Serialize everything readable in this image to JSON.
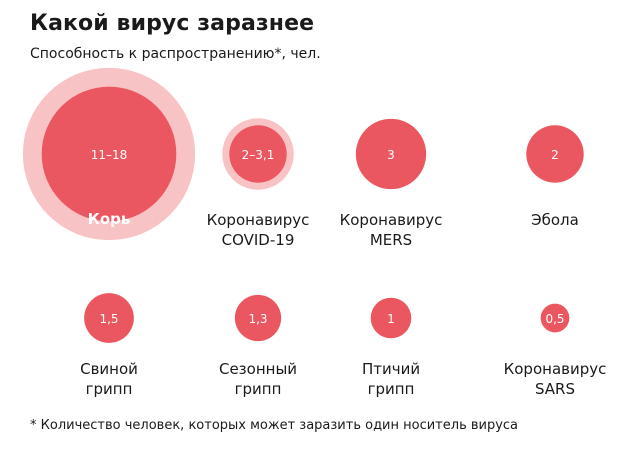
{
  "title": "Какой вирус заразнее",
  "subtitle": "Способность к распространению*, чел.",
  "footnote": "* Количество человек, которых может заразить один носитель вируса",
  "colors": {
    "bubble": "#eb5760",
    "halo": "#f7c3c5",
    "bubble_text": "#ffffff",
    "label_text": "#1a1a1a"
  },
  "chart_data": {
    "type": "bubble",
    "title": "Какой вирус заразнее",
    "subtitle": "Способность к распространению*, чел.",
    "size_encoding": "area",
    "items": [
      {
        "id": "measles",
        "name_lines": [
          "Корь"
        ],
        "value_label": "11–18",
        "value_min": 11,
        "value_max": 18,
        "range": true,
        "name_inside": true
      },
      {
        "id": "covid19",
        "name_lines": [
          "Коронавирус",
          "COVID-19"
        ],
        "value_label": "2–3,1",
        "value_min": 2,
        "value_max": 3.1,
        "range": true,
        "name_inside": false
      },
      {
        "id": "mers",
        "name_lines": [
          "Коронавирус",
          "MERS"
        ],
        "value_label": "3",
        "value_min": 3,
        "value_max": 3,
        "range": false,
        "name_inside": false
      },
      {
        "id": "ebola",
        "name_lines": [
          "Эбола"
        ],
        "value_label": "2",
        "value_min": 2,
        "value_max": 2,
        "range": false,
        "name_inside": false
      },
      {
        "id": "swine-flu",
        "name_lines": [
          "Свиной",
          "грипп"
        ],
        "value_label": "1,5",
        "value_min": 1.5,
        "value_max": 1.5,
        "range": false,
        "name_inside": false
      },
      {
        "id": "seasonal-flu",
        "name_lines": [
          "Сезонный",
          "грипп"
        ],
        "value_label": "1,3",
        "value_min": 1.3,
        "value_max": 1.3,
        "range": false,
        "name_inside": false
      },
      {
        "id": "bird-flu",
        "name_lines": [
          "Птичий",
          "грипп"
        ],
        "value_label": "1",
        "value_min": 1,
        "value_max": 1,
        "range": false,
        "name_inside": false
      },
      {
        "id": "sars",
        "name_lines": [
          "Коронавирус",
          "SARS"
        ],
        "value_label": "0,5",
        "value_min": 0.5,
        "value_max": 0.5,
        "range": false,
        "name_inside": false
      }
    ]
  }
}
